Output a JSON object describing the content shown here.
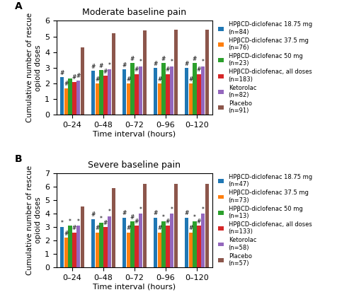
{
  "chart_data": [
    {
      "type": "bar",
      "panel_label": "A",
      "title": "Moderate baseline pain",
      "x_label": "Time interval (hours)",
      "y_label": "Cumulative number of rescue\nopioid doses",
      "categories": [
        "0–24",
        "0–48",
        "0–72",
        "0–96",
        "0–120"
      ],
      "ylim": [
        0,
        6
      ],
      "yticks": [
        0,
        1,
        2,
        3,
        4,
        5,
        6
      ],
      "legend": "right",
      "series": [
        {
          "name": "HPβCD-diclofenac 18.75 mg\n(n=84)",
          "values": [
            2.4,
            2.8,
            2.9,
            3.0,
            3.0
          ],
          "annotations": [
            "#",
            "#",
            "#",
            "#",
            "#"
          ]
        },
        {
          "name": "HPβCD-diclofenac 37.5 mg\n(n=76)",
          "values": [
            1.7,
            2.0,
            2.0,
            2.0,
            2.0
          ],
          "annotations": [
            "#",
            "#",
            "#",
            "#",
            "#"
          ]
        },
        {
          "name": "HPβCD-diclofenac 50 mg\n(n=23)",
          "values": [
            2.3,
            2.85,
            3.3,
            3.3,
            3.3
          ],
          "annotations": [
            null,
            "#",
            "#",
            "#",
            "#"
          ]
        },
        {
          "name": "HPβCD-diclofenac, all doses\n(n=183)",
          "values": [
            2.1,
            2.5,
            2.6,
            2.6,
            2.6
          ],
          "annotations": [
            "#",
            "#",
            "#",
            "#",
            "#"
          ]
        },
        {
          "name": "Ketorolac\n(n=82)",
          "values": [
            2.2,
            2.9,
            3.1,
            3.1,
            3.1
          ],
          "annotations": [
            "#",
            "*",
            "*",
            "*",
            "*"
          ]
        },
        {
          "name": "Placebo\n(n=91)",
          "values": [
            4.3,
            5.2,
            5.4,
            5.45,
            5.45
          ],
          "annotations": [
            null,
            null,
            null,
            null,
            null
          ]
        }
      ]
    },
    {
      "type": "bar",
      "panel_label": "B",
      "title": "Severe baseline pain",
      "x_label": "Time interval (hours)",
      "y_label": "Cumulative number of rescue\nopioid doses",
      "categories": [
        "0–24",
        "0–48",
        "0–72",
        "0–96",
        "0–120"
      ],
      "ylim": [
        0,
        7
      ],
      "yticks": [
        0,
        1,
        2,
        3,
        4,
        5,
        6,
        7
      ],
      "legend": "right",
      "series": [
        {
          "name": "HPβCD-diclofenac 18.75 mg\n(n=47)",
          "values": [
            3.0,
            3.6,
            3.7,
            3.7,
            3.7
          ],
          "annotations": [
            "*",
            "#",
            "#",
            "#",
            "#"
          ]
        },
        {
          "name": "HPβCD-diclofenac 37.5 mg\n(n=73)",
          "values": [
            2.2,
            2.6,
            2.6,
            2.6,
            2.6
          ],
          "annotations": [
            "#",
            "#",
            "#",
            "#",
            "#"
          ]
        },
        {
          "name": "HPβCD-diclofenac 50 mg\n(n=13)",
          "values": [
            3.1,
            3.3,
            3.4,
            3.4,
            3.4
          ],
          "annotations": [
            "*",
            "*",
            "#",
            "*",
            "*"
          ]
        },
        {
          "name": "HPβCD-diclofenac, all doses\n(n=133)",
          "values": [
            2.6,
            3.0,
            3.1,
            3.1,
            3.1
          ],
          "annotations": [
            "#",
            "#",
            "#",
            "#",
            "#"
          ]
        },
        {
          "name": "Ketorolac\n(n=58)",
          "values": [
            3.1,
            3.8,
            4.0,
            4.0,
            4.0
          ],
          "annotations": [
            "*",
            "*",
            "*",
            "*",
            "*"
          ]
        },
        {
          "name": "Placebo\n(n=57)",
          "values": [
            4.5,
            5.9,
            6.2,
            6.2,
            6.2
          ],
          "annotations": [
            null,
            null,
            null,
            null,
            null
          ]
        }
      ]
    }
  ]
}
